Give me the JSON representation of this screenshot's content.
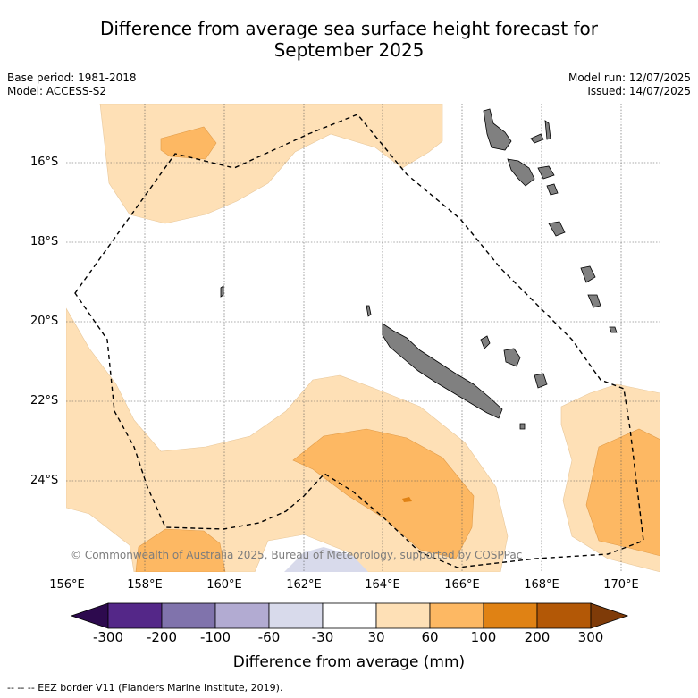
{
  "title_line1": "Difference from average sea surface height forecast for",
  "title_line2": "September 2025",
  "meta_left": [
    "Base period: 1981-2018",
    "Model: ACCESS-S2"
  ],
  "meta_right": [
    "Model run: 12/07/2025",
    "Issued: 14/07/2025"
  ],
  "credit": "© Commonwealth of Australia 2025, Bureau of Meteorology, supported by COSPPac",
  "lat_labels": [
    "16°S",
    "18°S",
    "20°S",
    "22°S",
    "24°S"
  ],
  "lon_labels": [
    "156°E",
    "158°E",
    "160°E",
    "162°E",
    "164°E",
    "166°E",
    "168°E",
    "170°E"
  ],
  "colorbar": {
    "title": "Difference from average (mm)",
    "tick_labels": [
      "-300",
      "-200",
      "-100",
      "-60",
      "-30",
      "30",
      "60",
      "100",
      "200",
      "300"
    ],
    "colors": [
      "#2d0a4e",
      "#542788",
      "#8073ac",
      "#b2abd2",
      "#d8daeb",
      "#ffffff",
      "#fee0b6",
      "#fdb863",
      "#e08214",
      "#b35806",
      "#7f3b08"
    ]
  },
  "land_color": "#808080",
  "footnote": "-- -- -- EEZ border V11 (Flanders Marine Institute, 2019)."
}
